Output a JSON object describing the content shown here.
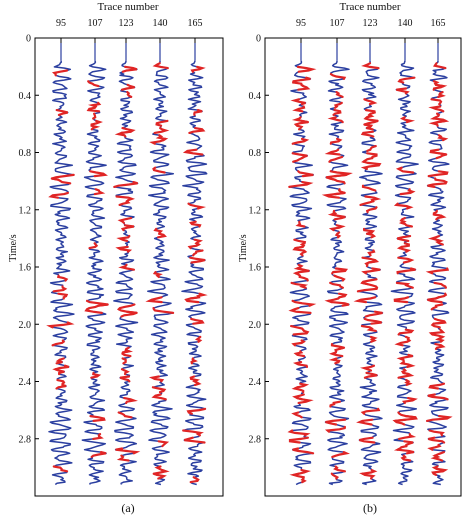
{
  "panels": [
    {
      "id": "a",
      "caption": "(a)",
      "top_label": "Trace number",
      "y_label": "Time/s",
      "traces": [
        "95",
        "107",
        "123",
        "140",
        "165"
      ],
      "time_ticks": [
        "0",
        "0.4",
        "0.8",
        "1.2",
        "1.6",
        "2.0",
        "2.4",
        "2.8"
      ]
    },
    {
      "id": "b",
      "caption": "(b)",
      "top_label": "Trace number",
      "y_label": "Time/s",
      "traces": [
        "95",
        "107",
        "123",
        "140",
        "165"
      ],
      "time_ticks": [
        "0",
        "0.4",
        "0.8",
        "1.2",
        "1.6",
        "2.0",
        "2.4",
        "2.8"
      ]
    }
  ],
  "colors": {
    "trace": "#2b3fa0",
    "highlight": "#e02525",
    "frame": "#000000"
  }
}
